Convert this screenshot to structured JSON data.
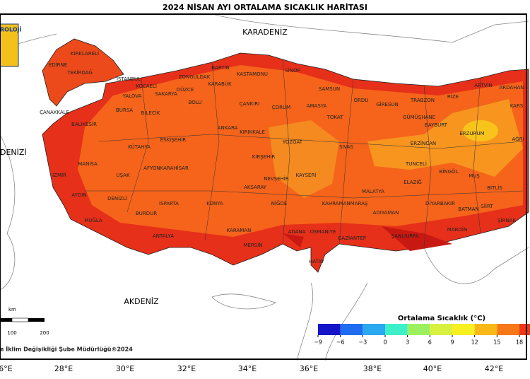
{
  "title": "2024 NİSAN AYI ORTALAMA SICAKLIK HARİTASI",
  "logo_text": "ROLOJİ",
  "seas": [
    "KARADENİZ",
    "DENİZİ",
    "AKDENİZ"
  ],
  "provinces": [
    "KIRKLARELİ",
    "EDİRNE",
    "TEKİRDAĞ",
    "İSTANBUL",
    "KOCAELİ",
    "ZONGULDAK",
    "BARTIN",
    "KASTAMONU",
    "SİNOP",
    "SAMSUN",
    "ARTVİN",
    "ARDAHAN",
    "YALOVA",
    "SAKARYA",
    "DÜZCE",
    "KARABÜK",
    "RİZE",
    "TRABZON",
    "ORDU",
    "GİRESUN",
    "BURSA",
    "BOLU",
    "ÇANKIRI",
    "ÇORUM",
    "AMASYA",
    "TOKAT",
    "GÜMÜŞHANE",
    "KARS",
    "ÇANAKKALE",
    "BİLECİK",
    "KIRIKKALE",
    "BAYBURT",
    "BALIKESİR",
    "ANKARA",
    "ERZURUM",
    "KÜTAHYA",
    "ESKİŞEHİR",
    "YOZGAT",
    "SİVAS",
    "ERZİNCAN",
    "AĞRI",
    "KIRŞEHİR",
    "MANİSA",
    "TUNCELİ",
    "AFYONKARAHİSAR",
    "İZMİR",
    "UŞAK",
    "KAYSERİ",
    "NEVŞEHİR",
    "BİNGÖL",
    "MUŞ",
    "AYDIN",
    "BİTLİS",
    "MALATYA",
    "ELAZIĞ",
    "KONYA",
    "AKSARAY",
    "ISPARTA",
    "NİĞDE",
    "KAHRAMANMARAŞ",
    "DİYARBAKIR",
    "DENİZLİ",
    "BATMAN",
    "SİİRT",
    "MUĞLA",
    "BURDUR",
    "ADIYAMAN",
    "ŞIRNAK",
    "KARAMAN",
    "MARDİN",
    "ADANA",
    "OSMANİYE",
    "ANTALYA",
    "GAZİANTEP",
    "ŞANLIURFA",
    "MERSİN",
    "HATAY"
  ],
  "longitude_ticks": [
    "6°E",
    "28°E",
    "30°E",
    "32°E",
    "34°E",
    "36°E",
    "38°E",
    "40°E",
    "42°E"
  ],
  "scale_bar": {
    "unit": "km",
    "labels": [
      100,
      200
    ]
  },
  "legend": {
    "title": "Ortalama Sıcaklık (°C)",
    "ticks": [
      {
        "value": -9,
        "label": "−9"
      },
      {
        "value": -6,
        "label": "−6"
      },
      {
        "value": -3,
        "label": "−3"
      },
      0,
      3,
      6,
      9,
      12,
      15,
      18
    ],
    "colors": [
      "#1414c8",
      "#1e6cf0",
      "#2aa8f0",
      "#3ef0c8",
      "#9cf060",
      "#d8f040",
      "#f8f020",
      "#f8b818",
      "#f87818",
      "#f03818",
      "#e00c10"
    ]
  },
  "footer": "e İklim Değişikliği Şube Müdürlüğü©2024"
}
